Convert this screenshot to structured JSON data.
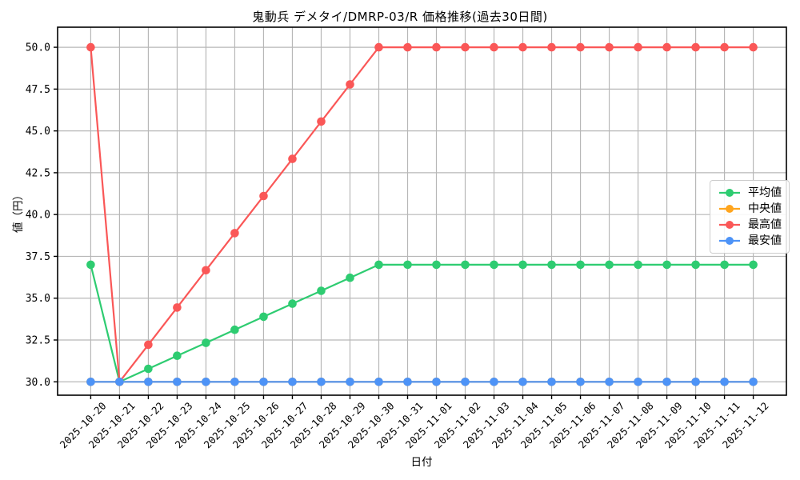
{
  "chart_data": {
    "type": "line",
    "title": "鬼動兵 デメタイ/DMRP-03/R 価格推移(過去30日間)",
    "xlabel": "日付",
    "ylabel": "値（円）",
    "categories": [
      "2025-10-20",
      "2025-10-21",
      "2025-10-22",
      "2025-10-23",
      "2025-10-24",
      "2025-10-25",
      "2025-10-26",
      "2025-10-27",
      "2025-10-28",
      "2025-10-29",
      "2025-10-30",
      "2025-10-31",
      "2025-11-01",
      "2025-11-02",
      "2025-11-03",
      "2025-11-04",
      "2025-11-05",
      "2025-11-06",
      "2025-11-07",
      "2025-11-08",
      "2025-11-09",
      "2025-11-10",
      "2025-11-11",
      "2025-11-12"
    ],
    "series": [
      {
        "key": "average",
        "name": "平均値",
        "color": "#2ecc71",
        "values": [
          37.0,
          30.0,
          30.78,
          31.56,
          32.33,
          33.11,
          33.89,
          34.67,
          35.44,
          36.22,
          37.0,
          37.0,
          37.0,
          37.0,
          37.0,
          37.0,
          37.0,
          37.0,
          37.0,
          37.0,
          37.0,
          37.0,
          37.0,
          37.0
        ]
      },
      {
        "key": "median",
        "name": "中央値",
        "color": "#ffa51e",
        "values": [
          30.0,
          30.0,
          30.0,
          30.0,
          30.0,
          30.0,
          30.0,
          30.0,
          30.0,
          30.0,
          30.0,
          30.0,
          30.0,
          30.0,
          30.0,
          30.0,
          30.0,
          30.0,
          30.0,
          30.0,
          30.0,
          30.0,
          30.0,
          30.0
        ]
      },
      {
        "key": "max",
        "name": "最高値",
        "color": "#fa5757",
        "values": [
          50.0,
          30.0,
          32.22,
          34.44,
          36.67,
          38.89,
          41.11,
          43.33,
          45.56,
          47.78,
          50.0,
          50.0,
          50.0,
          50.0,
          50.0,
          50.0,
          50.0,
          50.0,
          50.0,
          50.0,
          50.0,
          50.0,
          50.0,
          50.0
        ]
      },
      {
        "key": "min",
        "name": "最安値",
        "color": "#4d93f7",
        "values": [
          30.0,
          30.0,
          30.0,
          30.0,
          30.0,
          30.0,
          30.0,
          30.0,
          30.0,
          30.0,
          30.0,
          30.0,
          30.0,
          30.0,
          30.0,
          30.0,
          30.0,
          30.0,
          30.0,
          30.0,
          30.0,
          30.0,
          30.0,
          30.0
        ]
      }
    ],
    "yticks": [
      30.0,
      32.5,
      35.0,
      37.5,
      40.0,
      42.5,
      45.0,
      47.5,
      50.0
    ],
    "ytick_labels": [
      "30.0",
      "32.5",
      "35.0",
      "37.5",
      "40.0",
      "42.5",
      "45.0",
      "47.5",
      "50.0"
    ],
    "ylim": [
      29.2,
      51.2
    ],
    "grid": true,
    "grid_color": "#b7b7b7",
    "axis_color": "#000000",
    "background": "#ffffff",
    "legend_position": "center-right",
    "marker": "circle"
  }
}
